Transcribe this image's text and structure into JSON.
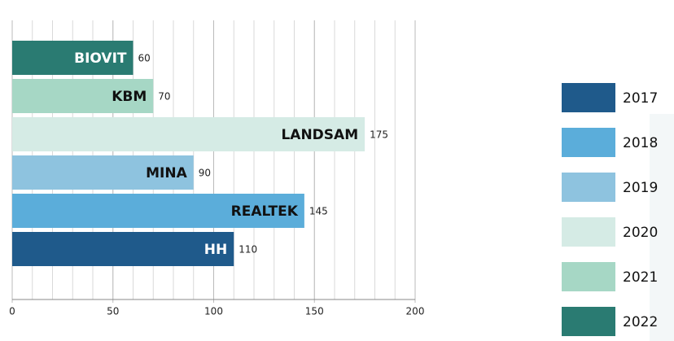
{
  "chart_data": {
    "type": "hbar",
    "categories": [
      "BIOVIT",
      "KBM",
      "LANDSAM",
      "MINA",
      "REALTEK",
      "HH"
    ],
    "values": [
      60,
      70,
      175,
      90,
      145,
      110
    ],
    "colors": [
      "#2a7b72",
      "#a6d7c5",
      "#d5ebe5",
      "#8ec3df",
      "#5badda",
      "#1f5a8b"
    ],
    "xlim": [
      0,
      200
    ],
    "xticks": [
      0,
      50,
      100,
      150,
      200
    ],
    "grid": true,
    "grid_step": 10,
    "legend": [
      {
        "name": "2017",
        "color": "#1f5a8b"
      },
      {
        "name": "2018",
        "color": "#5badda"
      },
      {
        "name": "2019",
        "color": "#8ec3df"
      },
      {
        "name": "2020",
        "color": "#d5ebe5"
      },
      {
        "name": "2021",
        "color": "#a6d7c5"
      },
      {
        "name": "2022",
        "color": "#2a7b72"
      }
    ]
  }
}
